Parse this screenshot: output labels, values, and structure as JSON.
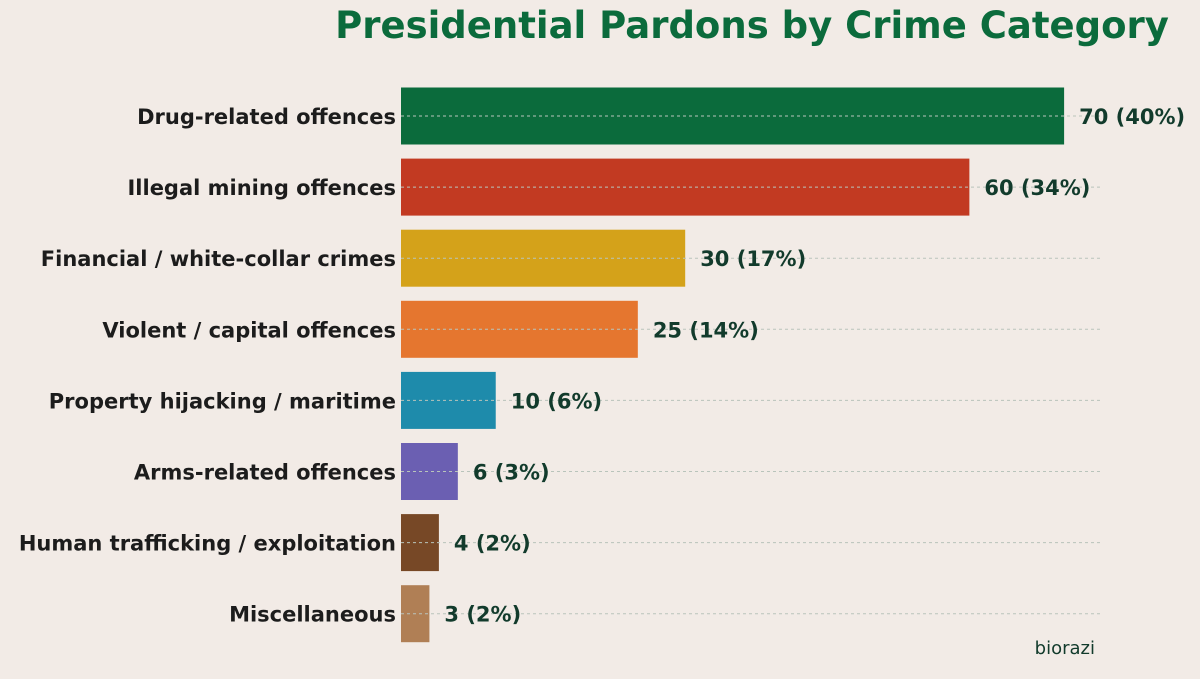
{
  "chart_data": {
    "type": "bar",
    "orientation": "horizontal",
    "title": "Presidential Pardons by Crime Category",
    "xlabel": "",
    "ylabel": "",
    "xlim": [
      0,
      74
    ],
    "grid": true,
    "categories": [
      "Drug-related offences",
      "Illegal mining offences",
      "Financial / white-collar crimes",
      "Violent / capital offences",
      "Property hijacking / maritime",
      "Arms-related offences",
      "Human trafficking / exploitation",
      "Miscellaneous"
    ],
    "values": [
      70,
      60,
      30,
      25,
      10,
      6,
      4,
      3
    ],
    "data_labels": [
      "70 (40%)",
      "60 (34%)",
      "30 (17%)",
      "25 (14%)",
      "10 (6%)",
      "6 (3%)",
      "4 (2%)",
      "3 (2%)"
    ],
    "colors": [
      "#0b6b3c",
      "#c23a22",
      "#d4a21a",
      "#e5762f",
      "#1e8bab",
      "#6b5fb2",
      "#774826",
      "#b07f55"
    ]
  },
  "watermark": "biorazi",
  "theme": {
    "background": "#f2ebe6",
    "title_color": "#0b6b3c",
    "value_label_color": "#123b2c",
    "category_label_color": "#1c1c1c",
    "watermark_color": "#123b2c"
  }
}
